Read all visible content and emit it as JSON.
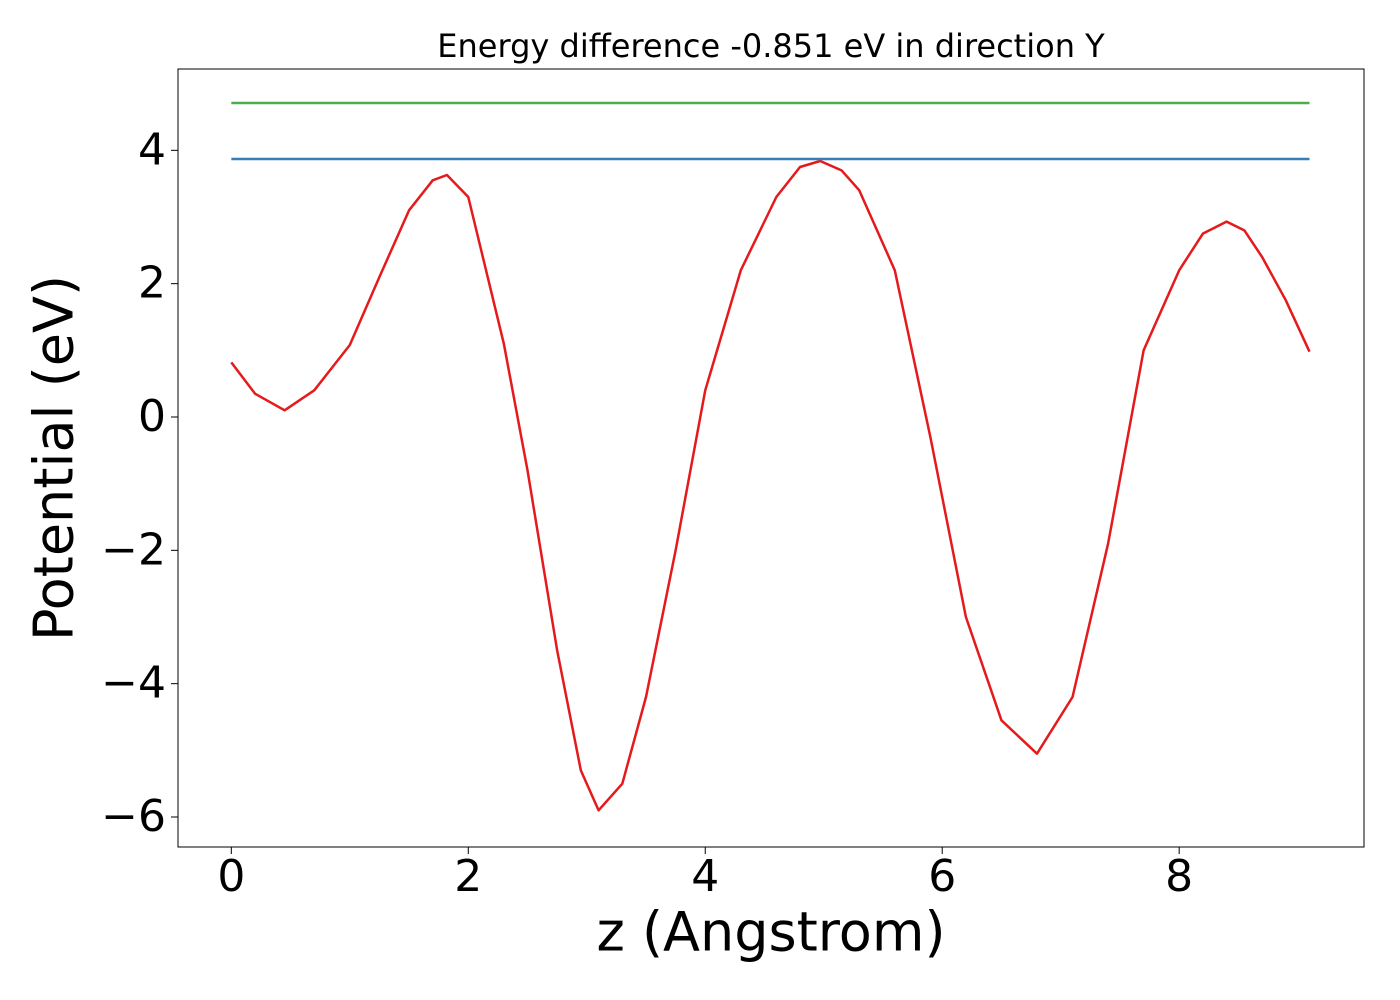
{
  "chart_data": {
    "type": "line",
    "title": "Energy difference -0.851 eV in direction Y",
    "x_label": "z (Angstrom)",
    "y_label": "Potential (eV)",
    "xlim": [
      -0.45,
      9.56
    ],
    "ylim": [
      -6.45,
      5.22
    ],
    "xticks": [
      0,
      2,
      4,
      6,
      8
    ],
    "yticks": [
      {
        "value": -6,
        "label": "−6"
      },
      {
        "value": -4,
        "label": "−4"
      },
      {
        "value": -2,
        "label": "−2"
      },
      0,
      2,
      4
    ],
    "grid": false,
    "series": [
      {
        "color": "#e41a1c",
        "x": [
          0,
          0.2,
          0.45,
          0.7,
          1.0,
          1.25,
          1.5,
          1.7,
          1.82,
          2.0,
          2.15,
          2.3,
          2.5,
          2.75,
          2.95,
          3.1,
          3.3,
          3.5,
          3.75,
          4.0,
          4.3,
          4.6,
          4.8,
          4.97,
          5.15,
          5.3,
          5.6,
          5.9,
          6.2,
          6.5,
          6.8,
          7.1,
          7.4,
          7.7,
          8.0,
          8.2,
          8.4,
          8.55,
          8.7,
          8.9,
          9.1
        ],
        "values": [
          0.82,
          0.35,
          0.1,
          0.4,
          1.08,
          2.1,
          3.1,
          3.55,
          3.63,
          3.3,
          2.2,
          1.1,
          -0.8,
          -3.5,
          -5.3,
          -5.9,
          -5.5,
          -4.2,
          -2.0,
          0.4,
          2.2,
          3.3,
          3.75,
          3.84,
          3.7,
          3.4,
          2.2,
          -0.3,
          -3.0,
          -4.55,
          -5.05,
          -4.2,
          -1.9,
          1.0,
          2.2,
          2.75,
          2.93,
          2.8,
          2.4,
          1.75,
          0.98
        ]
      },
      {
        "color": "#4daf4a",
        "x": [
          0,
          9.1
        ],
        "values": [
          4.71,
          4.71
        ]
      },
      {
        "color": "#377eb8",
        "x": [
          0,
          9.1
        ],
        "values": [
          3.87,
          3.87
        ]
      }
    ]
  }
}
